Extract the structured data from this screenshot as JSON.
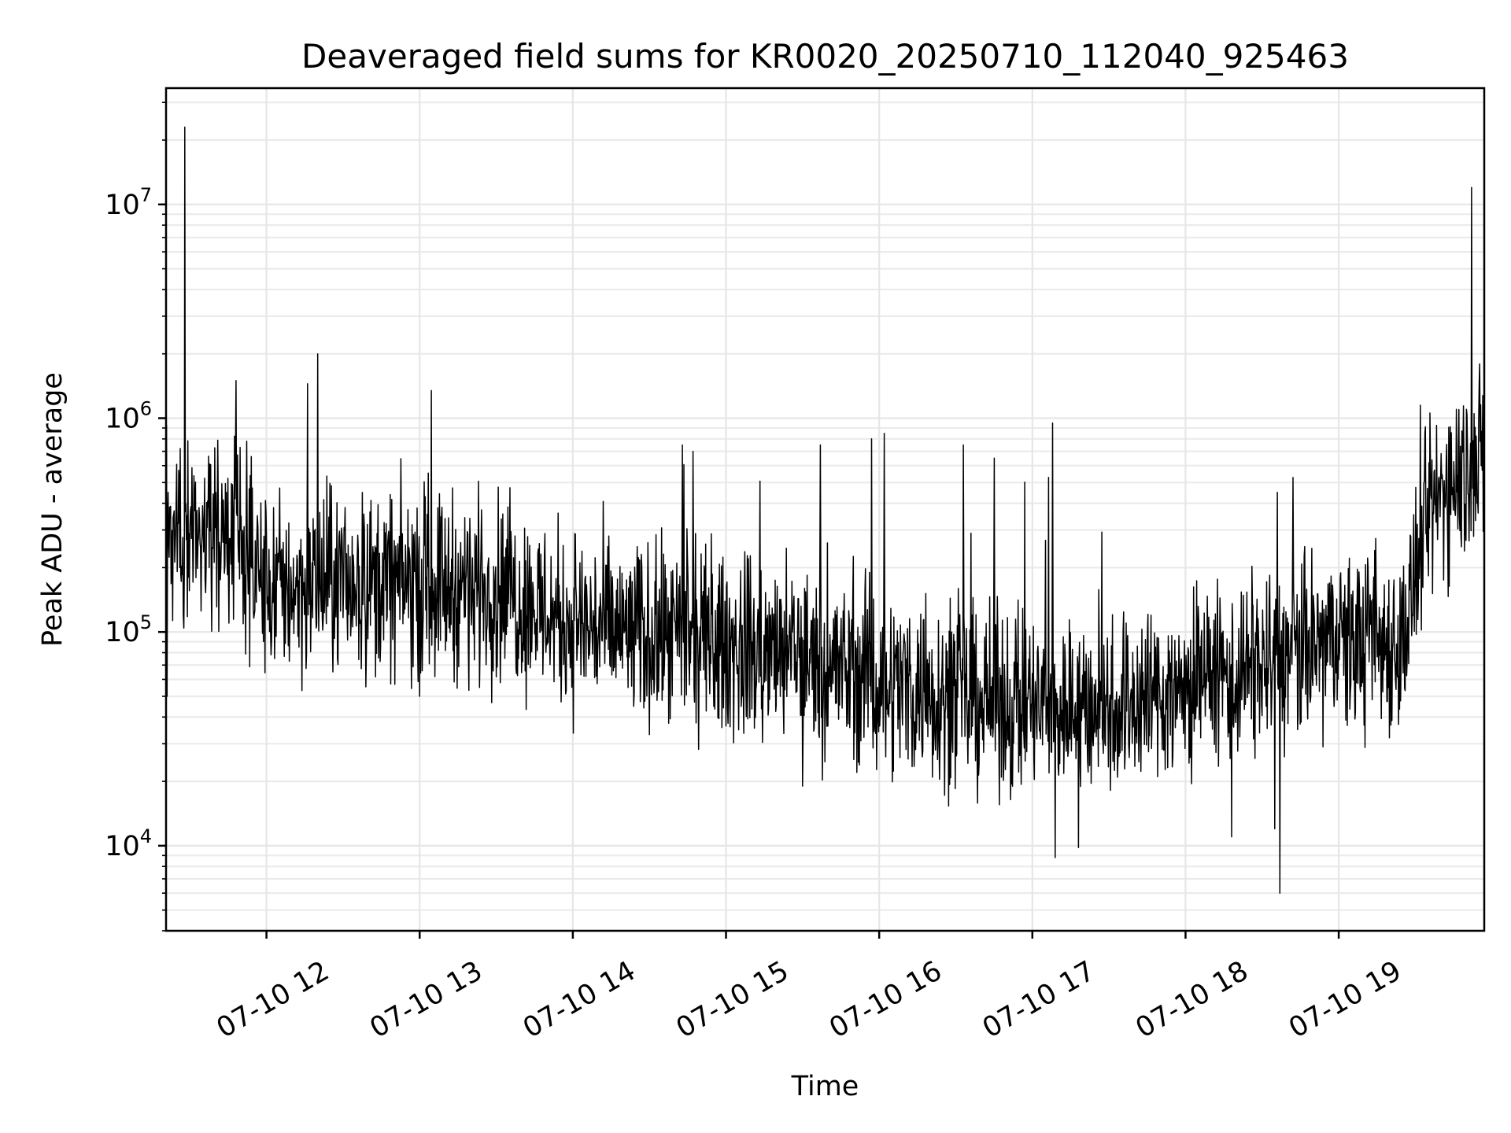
{
  "chart_data": {
    "type": "line",
    "title": "Deaveraged field sums for KR0020_20250710_112040_925463",
    "xlabel": "Time",
    "ylabel": "Peak ADU - average",
    "xscale": "time",
    "yscale": "log",
    "xlim": [
      "2025-07-10 11:20:40",
      "2025-07-10 19:57:00"
    ],
    "ylim": [
      4000,
      35000000
    ],
    "xticks": [
      {
        "label": "07-10 12",
        "time": "2025-07-10 12:00"
      },
      {
        "label": "07-10 13",
        "time": "2025-07-10 13:00"
      },
      {
        "label": "07-10 14",
        "time": "2025-07-10 14:00"
      },
      {
        "label": "07-10 15",
        "time": "2025-07-10 15:00"
      },
      {
        "label": "07-10 16",
        "time": "2025-07-10 16:00"
      },
      {
        "label": "07-10 17",
        "time": "2025-07-10 17:00"
      },
      {
        "label": "07-10 18",
        "time": "2025-07-10 18:00"
      },
      {
        "label": "07-10 19",
        "time": "2025-07-10 19:00"
      }
    ],
    "yticks": [
      {
        "base": "10",
        "exp": "4",
        "value": 10000
      },
      {
        "base": "10",
        "exp": "5",
        "value": 100000
      },
      {
        "base": "10",
        "exp": "6",
        "value": 1000000
      },
      {
        "base": "10",
        "exp": "7",
        "value": 10000000
      }
    ],
    "grid": true,
    "legend": "none",
    "series_color": "#000000",
    "trend": [
      {
        "t": "2025-07-10 11:21",
        "y": 280000
      },
      {
        "t": "2025-07-10 11:30",
        "y": 300000
      },
      {
        "t": "2025-07-10 11:48",
        "y": 300000
      },
      {
        "t": "2025-07-10 12:00",
        "y": 160000
      },
      {
        "t": "2025-07-10 12:30",
        "y": 170000
      },
      {
        "t": "2025-07-10 13:00",
        "y": 170000
      },
      {
        "t": "2025-07-10 13:30",
        "y": 160000
      },
      {
        "t": "2025-07-10 14:00",
        "y": 110000
      },
      {
        "t": "2025-07-10 14:30",
        "y": 95000
      },
      {
        "t": "2025-07-10 15:00",
        "y": 85000
      },
      {
        "t": "2025-07-10 15:30",
        "y": 75000
      },
      {
        "t": "2025-07-10 16:00",
        "y": 60000
      },
      {
        "t": "2025-07-10 16:30",
        "y": 50000
      },
      {
        "t": "2025-07-10 17:00",
        "y": 45000
      },
      {
        "t": "2025-07-10 17:30",
        "y": 45000
      },
      {
        "t": "2025-07-10 18:00",
        "y": 55000
      },
      {
        "t": "2025-07-10 18:30",
        "y": 70000
      },
      {
        "t": "2025-07-10 19:00",
        "y": 90000
      },
      {
        "t": "2025-07-10 19:25",
        "y": 90000
      },
      {
        "t": "2025-07-10 19:35",
        "y": 350000
      },
      {
        "t": "2025-07-10 19:45",
        "y": 550000
      },
      {
        "t": "2025-07-10 19:57",
        "y": 650000
      }
    ],
    "spikes": [
      {
        "t": "2025-07-10 11:21",
        "y": 50000
      },
      {
        "t": "2025-07-10 11:28",
        "y": 23000000
      },
      {
        "t": "2025-07-10 11:48",
        "y": 1500000
      },
      {
        "t": "2025-07-10 12:16",
        "y": 1450000
      },
      {
        "t": "2025-07-10 12:20",
        "y": 2000000
      },
      {
        "t": "2025-07-10 13:00",
        "y": 50000
      },
      {
        "t": "2025-07-10 14:43",
        "y": 750000
      },
      {
        "t": "2025-07-10 14:47",
        "y": 700000
      },
      {
        "t": "2025-07-10 15:30",
        "y": 19000
      },
      {
        "t": "2025-07-10 15:37",
        "y": 750000
      },
      {
        "t": "2025-07-10 15:57",
        "y": 800000
      },
      {
        "t": "2025-07-10 16:02",
        "y": 850000
      },
      {
        "t": "2025-07-10 16:33",
        "y": 750000
      },
      {
        "t": "2025-07-10 16:45",
        "y": 650000
      },
      {
        "t": "2025-07-10 17:08",
        "y": 950000
      },
      {
        "t": "2025-07-10 17:09",
        "y": 8800
      },
      {
        "t": "2025-07-10 17:18",
        "y": 9800
      },
      {
        "t": "2025-07-10 18:18",
        "y": 11000
      },
      {
        "t": "2025-07-10 18:35",
        "y": 12000
      },
      {
        "t": "2025-07-10 18:36",
        "y": 450000
      },
      {
        "t": "2025-07-10 18:37",
        "y": 6000
      },
      {
        "t": "2025-07-10 19:32",
        "y": 1150000
      },
      {
        "t": "2025-07-10 19:46",
        "y": 1100000
      },
      {
        "t": "2025-07-10 19:52",
        "y": 12000000
      },
      {
        "t": "2025-07-10 19:53",
        "y": 1050000
      }
    ]
  }
}
